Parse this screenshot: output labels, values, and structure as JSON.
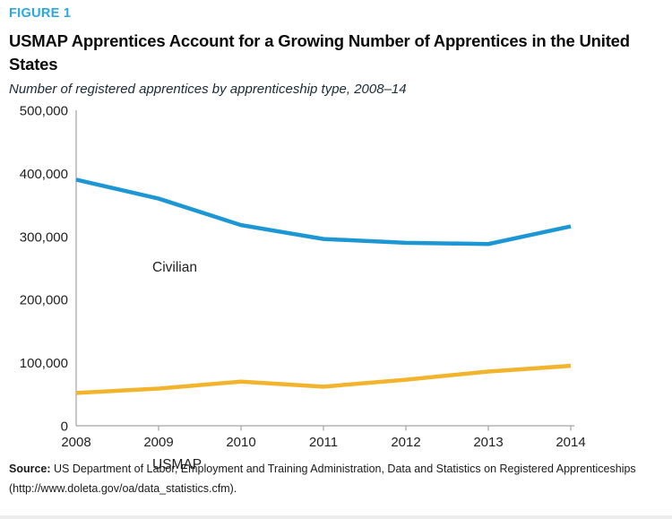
{
  "figure_label": "FIGURE 1",
  "title": "USMAP Apprentices Account for a Growing Number of Apprentices in the United States",
  "subtitle": "Number of registered apprentices by apprenticeship type, 2008–14",
  "source": {
    "label": "Source:",
    "text": " US Department of Labor, Employment and Training Administration, Data and Statistics on Registered Apprenticeships (http://www.doleta.gov/oa/data_statistics.cfm)."
  },
  "colors": {
    "figure_label": "#29a9e0",
    "civilian_line": "#1d97d4",
    "usmap_line": "#f1b42c",
    "axis": "#a3a3a3",
    "axis_text": "#212121"
  },
  "chart_data": {
    "type": "line",
    "x": [
      2008,
      2009,
      2010,
      2011,
      2012,
      2013,
      2014
    ],
    "series": [
      {
        "name": "Civilian",
        "color": "#1d97d4",
        "values": [
          390000,
          360000,
          318000,
          296000,
          290000,
          288000,
          316000
        ]
      },
      {
        "name": "USMAP",
        "color": "#f1b42c",
        "values": [
          52000,
          59000,
          70000,
          62000,
          73000,
          86000,
          95000
        ]
      }
    ],
    "title": "USMAP Apprentices Account for a Growing Number of Apprentices in the United States",
    "subtitle": "Number of registered apprentices by apprenticeship type, 2008–14",
    "xlabel": "",
    "ylabel": "",
    "ylim": [
      0,
      500000
    ],
    "yticks": [
      0,
      100000,
      200000,
      300000,
      400000,
      500000
    ],
    "grid": false,
    "legend": "inline-labels"
  }
}
